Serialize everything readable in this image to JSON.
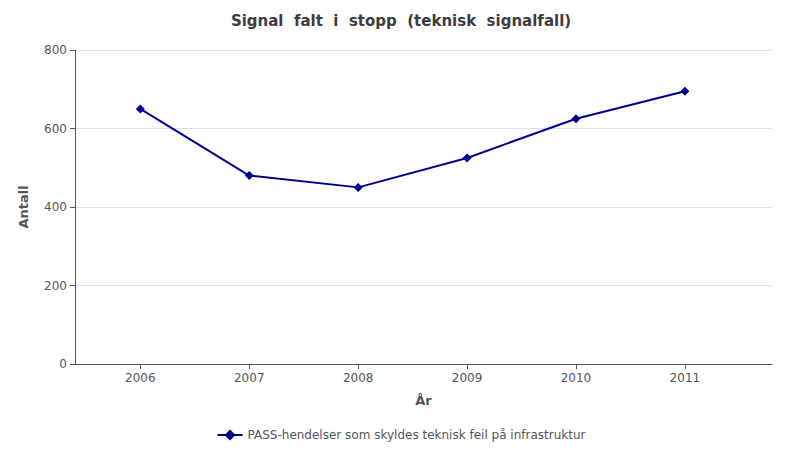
{
  "chart_data": {
    "type": "line",
    "title": "Signal  falt  i  stopp  (teknisk  signalfall)",
    "xlabel": "År",
    "ylabel": "Antall",
    "x": [
      2006,
      2007,
      2008,
      2009,
      2010,
      2011
    ],
    "series": [
      {
        "name": "PASS-hendelser som skyldes teknisk feil på infrastruktur",
        "color": "#00008B",
        "marker": "diamond",
        "values": [
          650,
          480,
          450,
          525,
          625,
          695
        ]
      }
    ],
    "xlim": [
      2005.4,
      2011.8
    ],
    "xticks": [
      2006,
      2007,
      2008,
      2009,
      2010,
      2011
    ],
    "ylim": [
      0,
      800
    ],
    "yticks": [
      0,
      200,
      400,
      600,
      800
    ],
    "grid": "y",
    "legend": "bottom"
  }
}
